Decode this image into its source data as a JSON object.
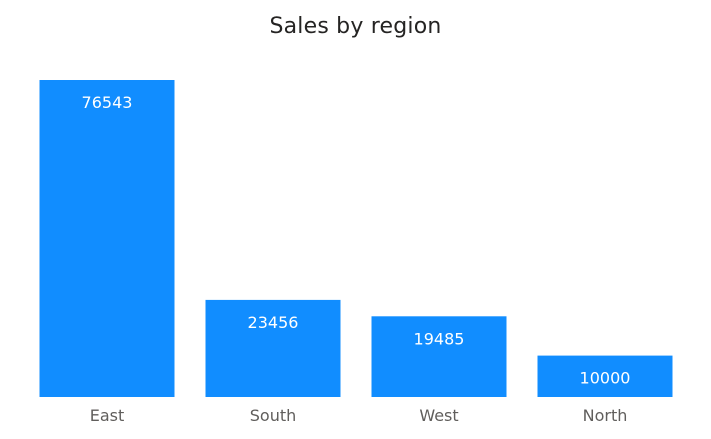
{
  "chart_data": {
    "type": "bar",
    "title": "Sales by region",
    "categories": [
      "East",
      "South",
      "West",
      "North"
    ],
    "values": [
      76543,
      23456,
      19485,
      10000
    ],
    "ylim": [
      0,
      76543
    ],
    "grid": false,
    "legend": "none",
    "data_labels": "inside-top",
    "xlabel": "",
    "ylabel": ""
  },
  "colors": {
    "bar": "#118dff",
    "bar_label": "#ffffff",
    "axis_text": "#605e5c",
    "title": "#252423",
    "background": "#ffffff"
  }
}
